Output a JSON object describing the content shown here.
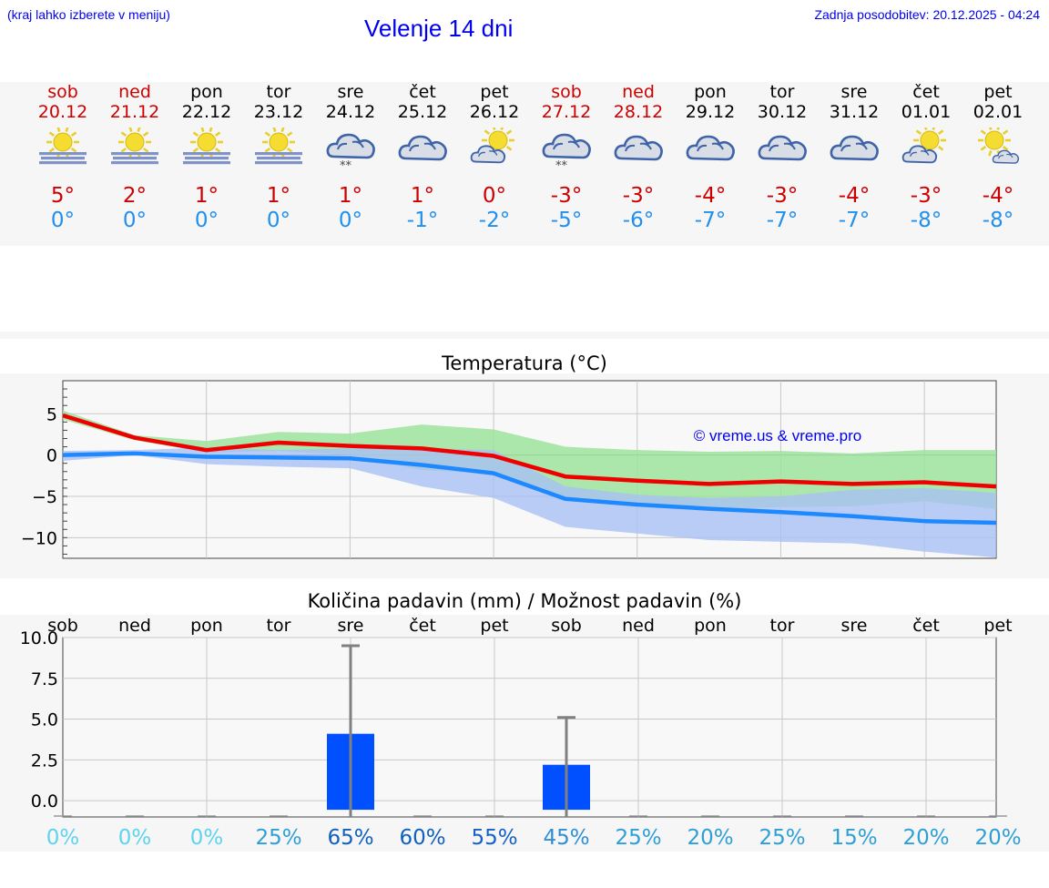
{
  "header": {
    "menu_hint": "(kraj lahko izberete v meniju)",
    "title": "Velenje 14 dni",
    "last_update": "Zadnja posodobitev: 20.12.2025 - 04:24"
  },
  "colors": {
    "title_blue": "#0000ee",
    "weekend_red": "#cc0000",
    "max_red": "#cc0000",
    "min_blue": "#2090ee",
    "max_line": "#ee0000",
    "min_line": "#1e88ff",
    "max_band": "#9ee39e",
    "min_band": "#a8c0f4",
    "bar_blue": "#0050ff"
  },
  "days": [
    {
      "name": "sob",
      "date": "20.12",
      "weekend": true,
      "icon": "sun-fog-icon",
      "max": "5°",
      "min": "0°"
    },
    {
      "name": "ned",
      "date": "21.12",
      "weekend": true,
      "icon": "sun-fog-icon",
      "max": "2°",
      "min": "0°"
    },
    {
      "name": "pon",
      "date": "22.12",
      "weekend": false,
      "icon": "sun-fog-icon",
      "max": "1°",
      "min": "0°"
    },
    {
      "name": "tor",
      "date": "23.12",
      "weekend": false,
      "icon": "sun-fog-icon",
      "max": "1°",
      "min": "0°"
    },
    {
      "name": "sre",
      "date": "24.12",
      "weekend": false,
      "icon": "cloud-snow-icon",
      "max": "1°",
      "min": "0°"
    },
    {
      "name": "čet",
      "date": "25.12",
      "weekend": false,
      "icon": "cloud-icon",
      "max": "1°",
      "min": "-1°"
    },
    {
      "name": "pet",
      "date": "26.12",
      "weekend": false,
      "icon": "sun-cloud-icon",
      "max": "0°",
      "min": "-2°"
    },
    {
      "name": "sob",
      "date": "27.12",
      "weekend": true,
      "icon": "cloud-snow-icon",
      "max": "-3°",
      "min": "-5°"
    },
    {
      "name": "ned",
      "date": "28.12",
      "weekend": true,
      "icon": "cloud-icon",
      "max": "-3°",
      "min": "-6°"
    },
    {
      "name": "pon",
      "date": "29.12",
      "weekend": false,
      "icon": "cloud-icon",
      "max": "-4°",
      "min": "-7°"
    },
    {
      "name": "tor",
      "date": "30.12",
      "weekend": false,
      "icon": "cloud-icon",
      "max": "-3°",
      "min": "-7°"
    },
    {
      "name": "sre",
      "date": "31.12",
      "weekend": false,
      "icon": "cloud-icon",
      "max": "-4°",
      "min": "-7°"
    },
    {
      "name": "čet",
      "date": "01.01",
      "weekend": false,
      "icon": "sun-cloud-icon",
      "max": "-3°",
      "min": "-8°"
    },
    {
      "name": "pet",
      "date": "02.01",
      "weekend": false,
      "icon": "sun-small-cloud-icon",
      "max": "-4°",
      "min": "-8°"
    }
  ],
  "chart_data": [
    {
      "type": "line",
      "title": "Temperatura (°C)",
      "ylim": [
        -12.5,
        9
      ],
      "yticks": [
        5,
        0,
        -5,
        -10
      ],
      "ytick_labels": [
        "5",
        "0",
        "−5",
        "−10"
      ],
      "watermark": "© vreme.us & vreme.pro",
      "series": [
        {
          "name": "max",
          "values": [
            4.8,
            2.1,
            0.6,
            1.5,
            1.1,
            0.8,
            -0.1,
            -2.6,
            -3.1,
            -3.5,
            -3.2,
            -3.5,
            -3.3,
            -3.8
          ],
          "band_low": [
            4.3,
            1.8,
            0.3,
            0.5,
            0.0,
            -1.8,
            -2.3,
            -5.0,
            -6.0,
            -6.6,
            -6.3,
            -6.2,
            -5.6,
            -6.5
          ],
          "band_high": [
            5.4,
            2.4,
            1.7,
            2.8,
            2.6,
            3.7,
            3.1,
            1.0,
            0.6,
            0.4,
            0.5,
            0.2,
            0.6,
            0.6
          ]
        },
        {
          "name": "min",
          "values": [
            0.0,
            0.2,
            -0.2,
            -0.3,
            -0.4,
            -1.2,
            -2.2,
            -5.3,
            -6.0,
            -6.5,
            -6.9,
            -7.4,
            -8.0,
            -8.2
          ],
          "band_low": [
            -0.7,
            0.0,
            -1.1,
            -1.4,
            -1.6,
            -3.8,
            -5.2,
            -8.7,
            -9.5,
            -10.3,
            -10.5,
            -10.7,
            -11.7,
            -12.4
          ],
          "band_high": [
            0.5,
            0.6,
            0.9,
            0.6,
            0.8,
            0.8,
            0.6,
            -3.8,
            -4.8,
            -5.2,
            -5.0,
            -4.2,
            -4.0,
            -4.6
          ]
        }
      ]
    },
    {
      "type": "bar",
      "title": "Količina padavin (mm) / Možnost padavin (%)",
      "categories": [
        "sob",
        "ned",
        "pon",
        "tor",
        "sre",
        "čet",
        "pet",
        "sob",
        "ned",
        "pon",
        "tor",
        "sre",
        "čet",
        "pet"
      ],
      "values": [
        0,
        0,
        0,
        0,
        4.1,
        0,
        0,
        2.2,
        0,
        0,
        0,
        0,
        0,
        0
      ],
      "error_high": [
        0,
        0,
        0,
        0,
        9.5,
        0,
        0,
        5.1,
        0,
        0,
        0,
        0,
        0,
        0
      ],
      "ylim": [
        -1,
        10
      ],
      "yticks": [
        0,
        2.5,
        5,
        7.5,
        10
      ],
      "ytick_labels": [
        "0.0",
        "2.5",
        "5.0",
        "7.5",
        "10.0"
      ],
      "ylabel": "mm",
      "probabilities": [
        "0%",
        "0%",
        "0%",
        "25%",
        "65%",
        "60%",
        "55%",
        "45%",
        "25%",
        "20%",
        "25%",
        "15%",
        "20%",
        "20%"
      ],
      "probability_colors": [
        "#5ed3ee",
        "#5ed3ee",
        "#5ed3ee",
        "#2e9fd6",
        "#1060c0",
        "#1060c0",
        "#1560c8",
        "#2e8fd6",
        "#2e9fd6",
        "#2e9fd6",
        "#2e9fd6",
        "#2e9fd6",
        "#2e9fd6",
        "#2e9fd6"
      ]
    }
  ]
}
